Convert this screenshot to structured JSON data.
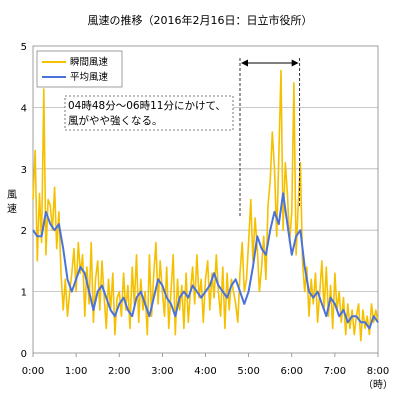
{
  "chart_data": {
    "type": "line",
    "title": "風速の推移（2016年2月16日：日立市役所）",
    "xlabel": "（時）",
    "ylabel": [
      "風",
      "速"
    ],
    "xlim": [
      0,
      8
    ],
    "ylim": [
      0,
      5
    ],
    "x_ticks": [
      0,
      1,
      2,
      3,
      4,
      5,
      6,
      7,
      8
    ],
    "x_tick_labels": [
      "0:00",
      "1:00",
      "2:00",
      "3:00",
      "4:00",
      "5:00",
      "6:00",
      "7:00",
      "8:00"
    ],
    "y_ticks": [
      0,
      1,
      2,
      3,
      4,
      5
    ],
    "y_tick_labels": [
      "0",
      "1",
      "2",
      "3",
      "4",
      "5"
    ],
    "grid": "horizontal",
    "legend_position": "top-left",
    "series": [
      {
        "name": "瞬間風速",
        "color": "#f5c000",
        "x": [
          0.0,
          0.05,
          0.1,
          0.15,
          0.2,
          0.25,
          0.3,
          0.35,
          0.4,
          0.45,
          0.5,
          0.55,
          0.6,
          0.65,
          0.7,
          0.75,
          0.8,
          0.85,
          0.9,
          0.95,
          1.0,
          1.05,
          1.1,
          1.15,
          1.2,
          1.25,
          1.3,
          1.35,
          1.4,
          1.45,
          1.5,
          1.55,
          1.6,
          1.65,
          1.7,
          1.75,
          1.8,
          1.85,
          1.9,
          1.95,
          2.0,
          2.05,
          2.1,
          2.15,
          2.2,
          2.25,
          2.3,
          2.35,
          2.4,
          2.45,
          2.5,
          2.55,
          2.6,
          2.65,
          2.7,
          2.75,
          2.8,
          2.85,
          2.9,
          2.95,
          3.0,
          3.05,
          3.1,
          3.15,
          3.2,
          3.25,
          3.3,
          3.35,
          3.4,
          3.45,
          3.5,
          3.55,
          3.6,
          3.65,
          3.7,
          3.75,
          3.8,
          3.85,
          3.9,
          3.95,
          4.0,
          4.05,
          4.1,
          4.15,
          4.2,
          4.25,
          4.3,
          4.35,
          4.4,
          4.45,
          4.5,
          4.55,
          4.6,
          4.65,
          4.7,
          4.75,
          4.8,
          4.85,
          4.9,
          4.95,
          5.0,
          5.05,
          5.1,
          5.15,
          5.2,
          5.25,
          5.3,
          5.35,
          5.4,
          5.45,
          5.5,
          5.55,
          5.6,
          5.65,
          5.7,
          5.75,
          5.8,
          5.85,
          5.9,
          5.95,
          6.0,
          6.05,
          6.1,
          6.15,
          6.2,
          6.25,
          6.3,
          6.35,
          6.4,
          6.45,
          6.5,
          6.55,
          6.6,
          6.65,
          6.7,
          6.75,
          6.8,
          6.85,
          6.9,
          6.95,
          7.0,
          7.05,
          7.1,
          7.15,
          7.2,
          7.25,
          7.3,
          7.35,
          7.4,
          7.45,
          7.5,
          7.55,
          7.6,
          7.65,
          7.7,
          7.75,
          7.8,
          7.85,
          7.9,
          7.95,
          8.0
        ],
        "values": [
          2.5,
          3.3,
          1.5,
          2.6,
          1.8,
          4.3,
          1.6,
          2.5,
          2.4,
          2.0,
          2.7,
          1.7,
          2.3,
          1.3,
          0.7,
          1.2,
          0.6,
          1.0,
          1.3,
          1.7,
          1.0,
          1.8,
          1.3,
          1.6,
          0.6,
          1.4,
          0.8,
          1.8,
          0.5,
          1.2,
          1.5,
          0.7,
          1.5,
          0.9,
          0.4,
          1.2,
          0.7,
          1.3,
          0.3,
          0.9,
          1.0,
          0.6,
          1.3,
          0.7,
          1.1,
          0.4,
          1.4,
          0.8,
          1.6,
          0.5,
          1.2,
          0.7,
          1.0,
          0.3,
          1.6,
          0.6,
          1.3,
          1.8,
          0.8,
          1.5,
          1.0,
          0.6,
          1.4,
          0.4,
          1.0,
          1.6,
          0.3,
          1.2,
          0.7,
          1.1,
          0.4,
          1.3,
          0.5,
          1.0,
          1.4,
          0.8,
          1.6,
          0.9,
          1.2,
          0.5,
          1.2,
          1.5,
          0.7,
          1.3,
          0.9,
          1.6,
          1.0,
          0.6,
          1.4,
          0.4,
          1.3,
          0.7,
          1.2,
          1.0,
          0.8,
          0.5,
          1.3,
          1.8,
          1.0,
          1.2,
          1.8,
          2.5,
          1.5,
          2.2,
          1.7,
          1.0,
          1.4,
          1.9,
          1.2,
          2.4,
          2.8,
          3.6,
          3.0,
          1.9,
          3.2,
          4.6,
          2.0,
          3.1,
          2.6,
          1.8,
          2.3,
          4.4,
          1.6,
          2.4,
          3.1,
          1.5,
          1.0,
          1.4,
          0.6,
          1.2,
          0.8,
          1.3,
          0.5,
          1.0,
          1.5,
          0.7,
          1.4,
          0.6,
          1.1,
          0.4,
          1.3,
          0.7,
          1.0,
          0.5,
          0.9,
          0.3,
          0.8,
          0.4,
          0.7,
          0.3,
          0.6,
          0.8,
          0.2,
          0.7,
          0.4,
          0.6,
          0.3,
          0.8,
          0.5,
          0.7,
          0.5
        ]
      },
      {
        "name": "平均風速",
        "color": "#4a72d9",
        "x": [
          0.0,
          0.1,
          0.2,
          0.3,
          0.4,
          0.5,
          0.6,
          0.7,
          0.8,
          0.9,
          1.0,
          1.1,
          1.2,
          1.3,
          1.4,
          1.5,
          1.6,
          1.7,
          1.8,
          1.9,
          2.0,
          2.1,
          2.2,
          2.3,
          2.4,
          2.5,
          2.6,
          2.7,
          2.8,
          2.9,
          3.0,
          3.1,
          3.2,
          3.3,
          3.4,
          3.5,
          3.6,
          3.7,
          3.8,
          3.9,
          4.0,
          4.1,
          4.2,
          4.3,
          4.4,
          4.5,
          4.6,
          4.7,
          4.8,
          4.9,
          5.0,
          5.1,
          5.2,
          5.3,
          5.4,
          5.5,
          5.6,
          5.7,
          5.8,
          5.9,
          6.0,
          6.1,
          6.2,
          6.3,
          6.4,
          6.5,
          6.6,
          6.7,
          6.8,
          6.9,
          7.0,
          7.1,
          7.2,
          7.3,
          7.4,
          7.5,
          7.6,
          7.7,
          7.8,
          7.9,
          8.0
        ],
        "values": [
          2.0,
          1.9,
          1.9,
          2.3,
          2.1,
          2.0,
          2.1,
          1.7,
          1.2,
          1.0,
          1.2,
          1.4,
          1.3,
          1.0,
          0.7,
          1.0,
          1.1,
          0.9,
          0.7,
          0.6,
          0.8,
          0.9,
          0.7,
          0.6,
          0.9,
          1.0,
          0.8,
          0.6,
          0.9,
          1.2,
          1.1,
          0.9,
          0.8,
          0.6,
          0.9,
          1.0,
          0.9,
          1.1,
          1.0,
          0.9,
          1.0,
          1.1,
          1.3,
          1.1,
          1.0,
          0.9,
          1.1,
          1.2,
          1.0,
          0.8,
          1.0,
          1.4,
          1.9,
          1.7,
          1.6,
          2.0,
          2.3,
          2.1,
          2.6,
          2.1,
          1.6,
          1.9,
          2.0,
          1.4,
          1.0,
          0.9,
          1.0,
          0.8,
          0.6,
          0.9,
          0.8,
          0.6,
          0.7,
          0.5,
          0.6,
          0.6,
          0.5,
          0.5,
          0.4,
          0.6,
          0.5
        ]
      }
    ],
    "annotation": {
      "lines": [
        "04時48分～06時11分にかけて、",
        "風がやや強くなる。"
      ],
      "span": [
        4.8,
        6.183
      ]
    }
  }
}
